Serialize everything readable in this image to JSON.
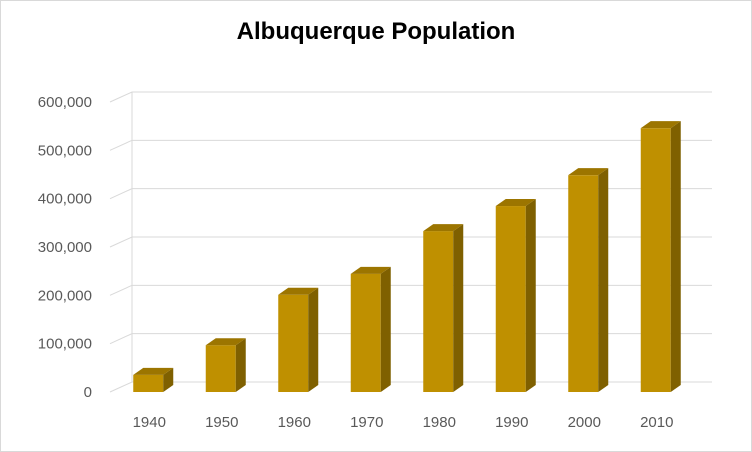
{
  "chart_data": {
    "type": "bar",
    "title": "Albuquerque Population",
    "xlabel": "",
    "ylabel": "",
    "categories": [
      "1940",
      "1950",
      "1960",
      "1970",
      "1980",
      "1990",
      "2000",
      "2010"
    ],
    "values": [
      35449,
      96815,
      201189,
      244501,
      332920,
      384736,
      448607,
      545852
    ],
    "ylim": [
      0,
      600000
    ],
    "yticks": [
      0,
      100000,
      200000,
      300000,
      400000,
      500000,
      600000
    ],
    "ytick_labels": [
      "0",
      "100,000",
      "200,000",
      "300,000",
      "400,000",
      "500,000",
      "600,000"
    ],
    "grid": true,
    "legend": "none",
    "style": "3d-column",
    "colors": {
      "bar_front": "#bf9000",
      "bar_side": "#7f6000",
      "bar_top": "#9c7500",
      "grid": "#d9d9d9",
      "tick_text": "#595959"
    }
  }
}
